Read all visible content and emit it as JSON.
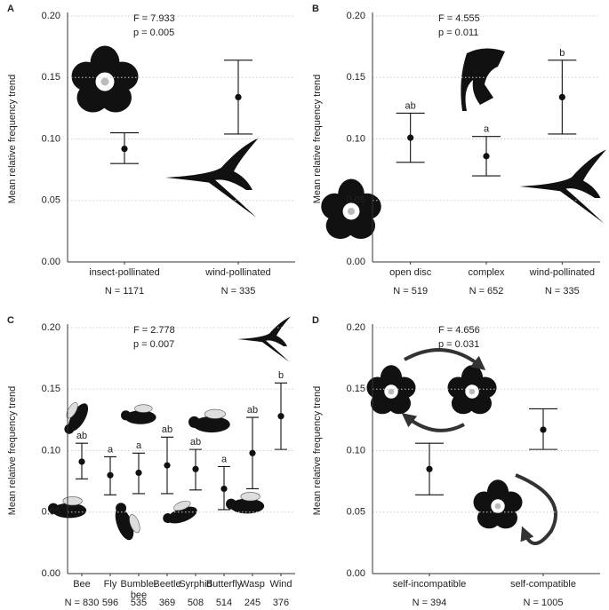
{
  "chart_data": [
    {
      "type": "pointrange",
      "panel_label": "A",
      "stat_f": "F = 7.933",
      "stat_p": "p = 0.005",
      "y_label": "Mean relative frequency trend",
      "categories": [
        "insect-pollinated",
        "wind-pollinated"
      ],
      "n_labels": [
        "N = 1171",
        "N = 335"
      ],
      "values": [
        0.092,
        0.134
      ],
      "ci_low": [
        0.08,
        0.104
      ],
      "ci_high": [
        0.105,
        0.164
      ],
      "ylim": [
        0,
        0.2
      ],
      "yticks": [
        {
          "value": 0,
          "label": "0.00"
        },
        {
          "value": 0.05,
          "label": "0.05"
        },
        {
          "value": 0.1,
          "label": "0.10"
        },
        {
          "value": 0.15,
          "label": "0.15"
        },
        {
          "value": 0.2,
          "label": "0.20"
        }
      ],
      "grid": true,
      "color": "#111111"
    },
    {
      "type": "pointrange",
      "panel_label": "B",
      "stat_f": "F = 4.555",
      "stat_p": "p = 0.011",
      "y_label": "Mean relative frequency trend",
      "categories": [
        "open disc",
        "complex",
        "wind-pollinated"
      ],
      "n_labels": [
        "N = 519",
        "N = 652",
        "N = 335"
      ],
      "values": [
        0.101,
        0.086,
        0.134
      ],
      "ci_low": [
        0.081,
        0.07,
        0.104
      ],
      "ci_high": [
        0.121,
        0.102,
        0.164
      ],
      "letters": [
        "ab",
        "a",
        "b"
      ],
      "ylim": [
        0,
        0.2
      ],
      "yticks": [
        {
          "value": 0,
          "label": "0.00"
        },
        {
          "value": 0.05,
          "label": "0.05"
        },
        {
          "value": 0.1,
          "label": "0.10"
        },
        {
          "value": 0.15,
          "label": "0.15"
        },
        {
          "value": 0.2,
          "label": "0.20"
        }
      ],
      "grid": true,
      "color": "#111111"
    },
    {
      "type": "pointrange",
      "panel_label": "C",
      "stat_f": "F = 2.778",
      "stat_p": "p = 0.007",
      "y_label": "Mean relative frequency trend",
      "categories": [
        "Bee",
        "Fly",
        "Bumble-\nbee",
        "Beetle",
        "Syrphid",
        "Butterfly",
        "Wasp",
        "Wind"
      ],
      "n_labels": [
        "N = 830",
        "596",
        "535",
        "369",
        "508",
        "514",
        "245",
        "376"
      ],
      "values": [
        0.091,
        0.08,
        0.082,
        0.088,
        0.085,
        0.069,
        0.098,
        0.128
      ],
      "ci_low": [
        0.077,
        0.064,
        0.065,
        0.065,
        0.068,
        0.052,
        0.069,
        0.101
      ],
      "ci_high": [
        0.106,
        0.095,
        0.098,
        0.111,
        0.101,
        0.087,
        0.127,
        0.155
      ],
      "letters": [
        "ab",
        "a",
        "a",
        "ab",
        "ab",
        "a",
        "ab",
        "b"
      ],
      "ylim": [
        0,
        0.2
      ],
      "yticks": [
        {
          "value": 0,
          "label": "0.00"
        },
        {
          "value": 0.05,
          "label": "0.05"
        },
        {
          "value": 0.1,
          "label": "0.10"
        },
        {
          "value": 0.15,
          "label": "0.15"
        },
        {
          "value": 0.2,
          "label": "0.20"
        }
      ],
      "grid": true,
      "color": "#111111"
    },
    {
      "type": "pointrange",
      "panel_label": "D",
      "stat_f": "F = 4.656",
      "stat_p": "p = 0.031",
      "y_label": "Mean relative frequency trend",
      "categories": [
        "self-incompatible",
        "self-compatible"
      ],
      "n_labels": [
        "N = 394",
        "N = 1005"
      ],
      "values": [
        0.085,
        0.117
      ],
      "ci_low": [
        0.064,
        0.101
      ],
      "ci_high": [
        0.106,
        0.134
      ],
      "ylim": [
        0,
        0.2
      ],
      "yticks": [
        {
          "value": 0,
          "label": "0.00"
        },
        {
          "value": 0.05,
          "label": "0.05"
        },
        {
          "value": 0.1,
          "label": "0.10"
        },
        {
          "value": 0.15,
          "label": "0.15"
        },
        {
          "value": 0.2,
          "label": "0.20"
        }
      ],
      "grid": true,
      "color": "#111111"
    }
  ]
}
